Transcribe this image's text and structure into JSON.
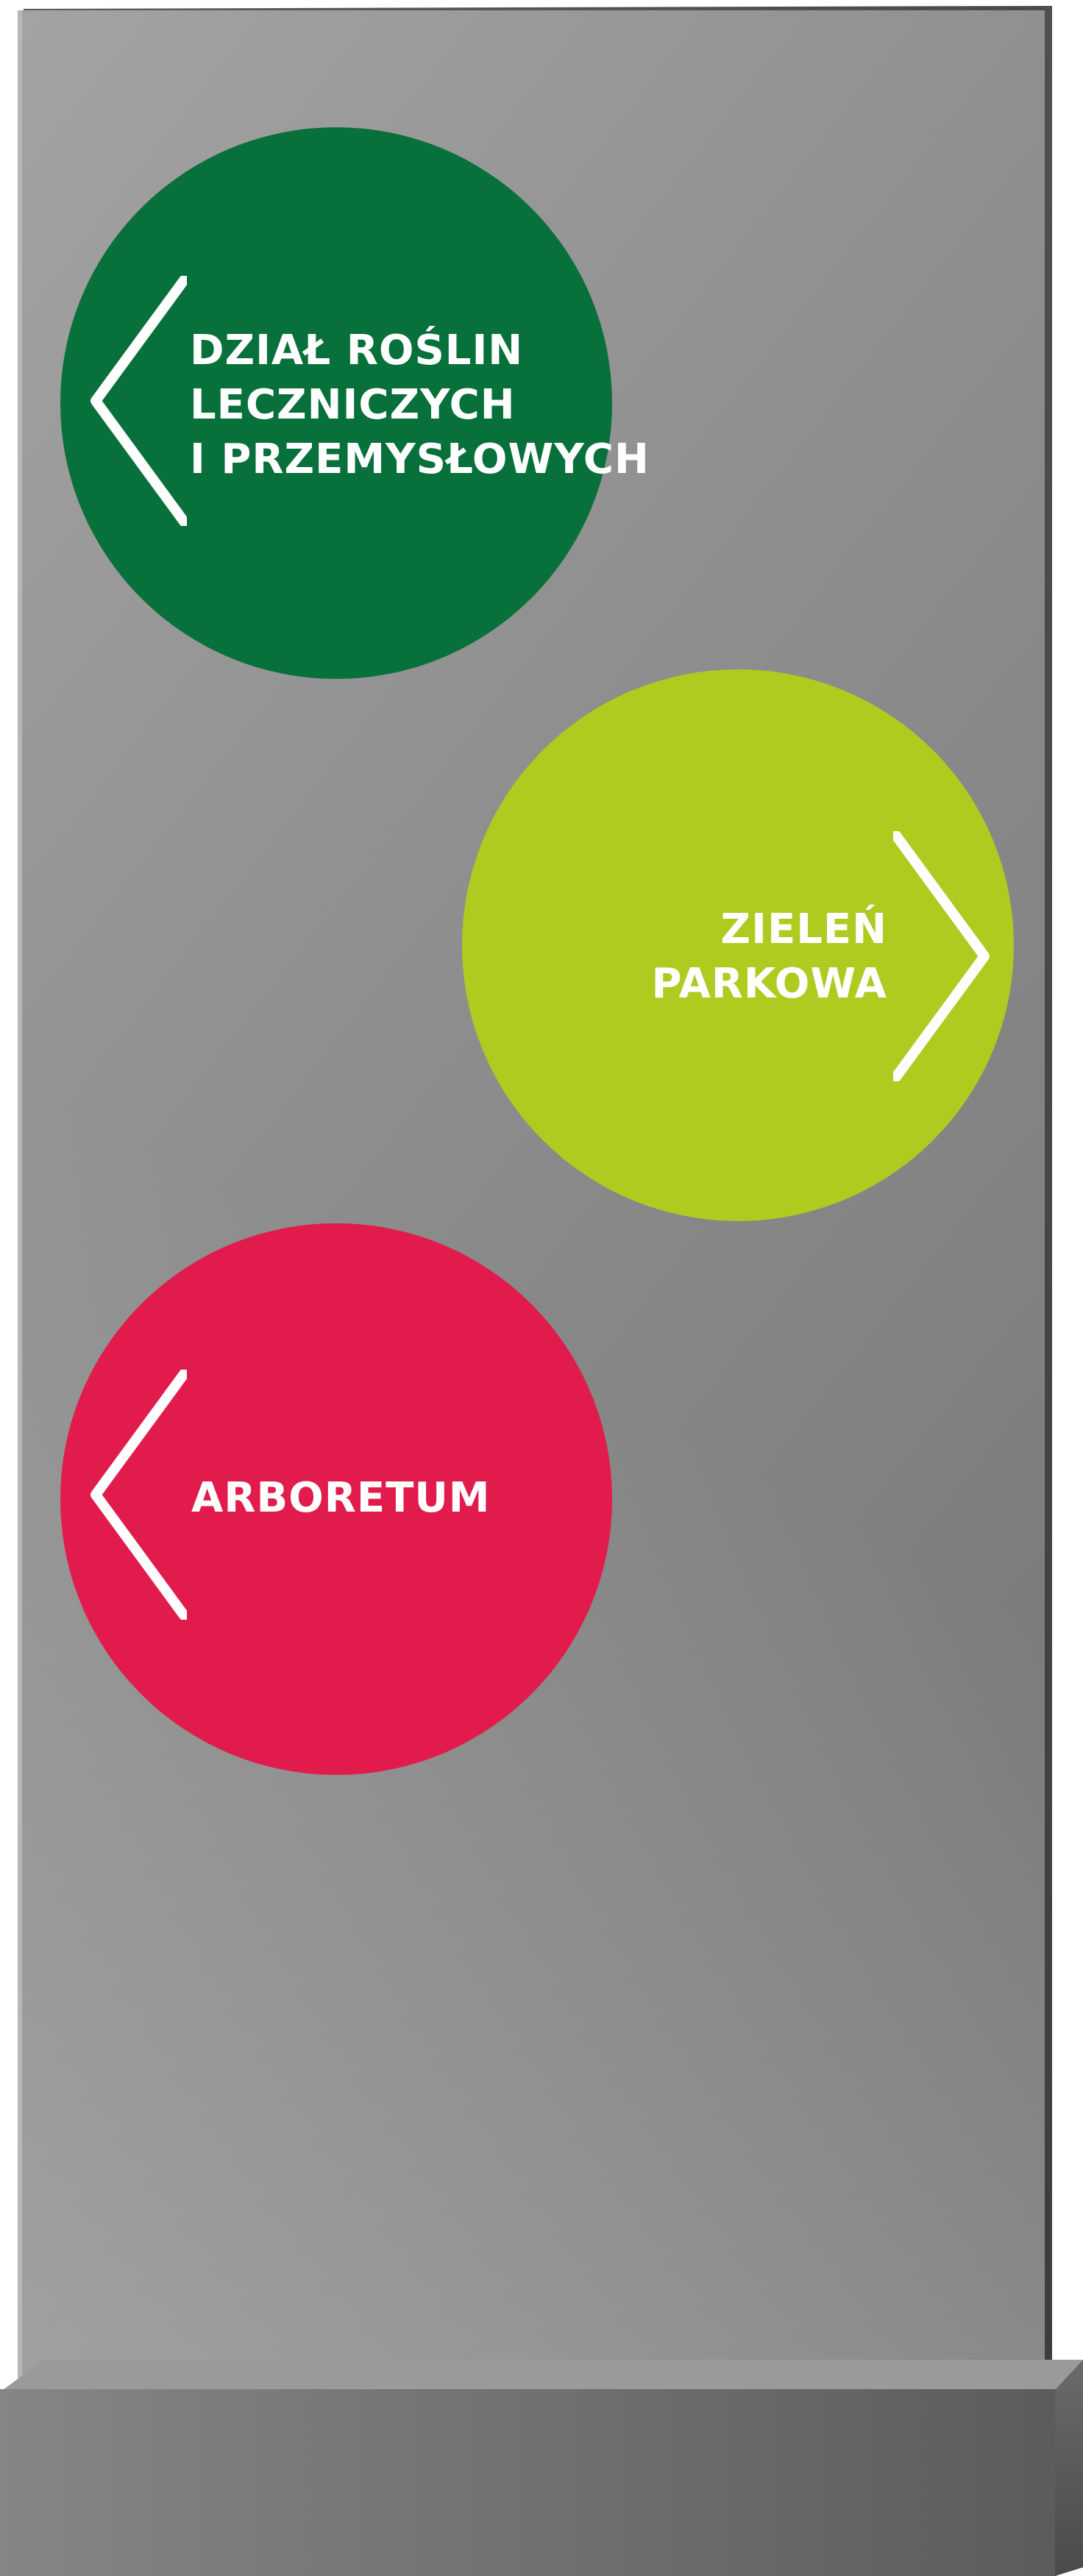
{
  "sign": {
    "colors": {
      "board": "#8f8f8f",
      "base": "#6f6f6f",
      "green": "#08703a",
      "lime": "#aecb20",
      "red": "#e11c4c",
      "text": "#ffffff"
    },
    "directions": [
      {
        "id": "medicinal-plants",
        "lines": [
          "DZIAŁ ROŚLIN",
          "LECZNICZYCH",
          "I PRZEMYSŁOWYCH"
        ],
        "arrow": "chevron-left-icon",
        "color": "#08703a"
      },
      {
        "id": "park-greenery",
        "lines": [
          "ZIELEŃ",
          "PARKOWA"
        ],
        "arrow": "chevron-right-icon",
        "color": "#aecb20"
      },
      {
        "id": "arboretum",
        "lines": [
          "ARBORETUM"
        ],
        "arrow": "chevron-left-icon",
        "color": "#e11c4c"
      }
    ]
  }
}
